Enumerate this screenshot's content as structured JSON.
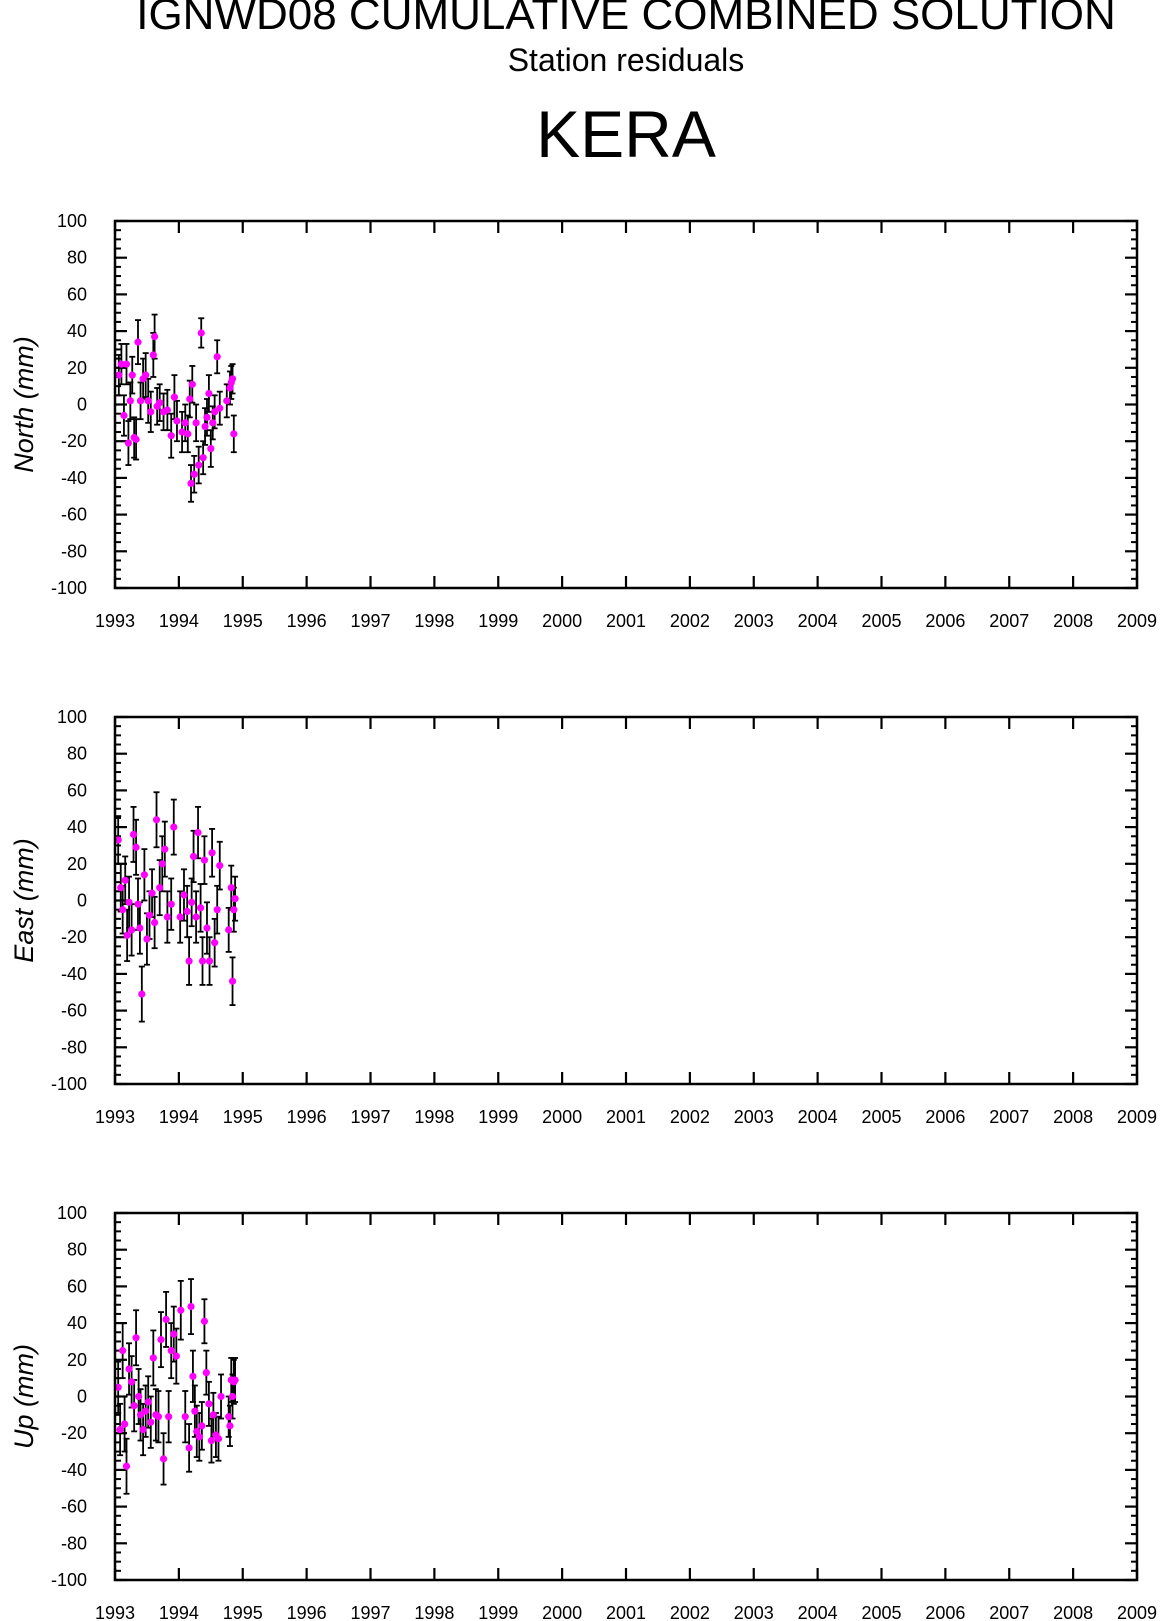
{
  "header": {
    "title": "IGNWD08 CUMULATIVE COMBINED SOLUTION",
    "subtitle": "Station residuals",
    "station": "KERA"
  },
  "colors": {
    "marker": "#ff00ff",
    "errorbar": "#000000",
    "axis": "#000000"
  },
  "chart_data": [
    {
      "type": "scatter",
      "ylabel": "North (mm)",
      "xlim": [
        1993,
        2009
      ],
      "ylim": [
        -100,
        100
      ],
      "x_ticks": [
        "1993",
        "1994",
        "1995",
        "1996",
        "1997",
        "1998",
        "1999",
        "2000",
        "2001",
        "2002",
        "2003",
        "2004",
        "2005",
        "2006",
        "2007",
        "2008",
        "2009"
      ],
      "y_ticks": [
        "100",
        "80",
        "60",
        "40",
        "20",
        "0",
        "-20",
        "-40",
        "-60",
        "-80",
        "-100"
      ],
      "grid": false,
      "series": [
        {
          "points": [
            {
              "x": 1993.06,
              "y": 16,
              "err": 11
            },
            {
              "x": 1993.1,
              "y": 22,
              "err": 11
            },
            {
              "x": 1993.14,
              "y": -6,
              "err": 11
            },
            {
              "x": 1993.18,
              "y": 22,
              "err": 11
            },
            {
              "x": 1993.21,
              "y": -21,
              "err": 12
            },
            {
              "x": 1993.24,
              "y": 2,
              "err": 10
            },
            {
              "x": 1993.27,
              "y": 16,
              "err": 10
            },
            {
              "x": 1993.3,
              "y": -18,
              "err": 11
            },
            {
              "x": 1993.33,
              "y": -19,
              "err": 11
            },
            {
              "x": 1993.36,
              "y": 34,
              "err": 12
            },
            {
              "x": 1993.4,
              "y": 2,
              "err": 10
            },
            {
              "x": 1993.44,
              "y": 14,
              "err": 11
            },
            {
              "x": 1993.48,
              "y": 16,
              "err": 12
            },
            {
              "x": 1993.52,
              "y": 2,
              "err": 12
            },
            {
              "x": 1993.56,
              "y": -4,
              "err": 11
            },
            {
              "x": 1993.6,
              "y": 27,
              "err": 12
            },
            {
              "x": 1993.62,
              "y": 37,
              "err": 12
            },
            {
              "x": 1993.66,
              "y": -1,
              "err": 10
            },
            {
              "x": 1993.7,
              "y": 1,
              "err": 10
            },
            {
              "x": 1993.76,
              "y": -4,
              "err": 10
            },
            {
              "x": 1993.82,
              "y": -3,
              "err": 11
            },
            {
              "x": 1993.88,
              "y": -17,
              "err": 12
            },
            {
              "x": 1993.93,
              "y": 4,
              "err": 12
            },
            {
              "x": 1993.97,
              "y": -9,
              "err": 11
            },
            {
              "x": 1994.05,
              "y": -15,
              "err": 11
            },
            {
              "x": 1994.1,
              "y": -10,
              "err": 10
            },
            {
              "x": 1994.14,
              "y": -16,
              "err": 10
            },
            {
              "x": 1994.17,
              "y": 3,
              "err": 10
            },
            {
              "x": 1994.19,
              "y": -43,
              "err": 10
            },
            {
              "x": 1994.21,
              "y": 11,
              "err": 10
            },
            {
              "x": 1994.24,
              "y": -38,
              "err": 10
            },
            {
              "x": 1994.27,
              "y": -10,
              "err": 10
            },
            {
              "x": 1994.31,
              "y": -33,
              "err": 10
            },
            {
              "x": 1994.35,
              "y": 39,
              "err": 8
            },
            {
              "x": 1994.38,
              "y": -29,
              "err": 9
            },
            {
              "x": 1994.41,
              "y": -12,
              "err": 10
            },
            {
              "x": 1994.44,
              "y": -7,
              "err": 10
            },
            {
              "x": 1994.47,
              "y": 6,
              "err": 10
            },
            {
              "x": 1994.5,
              "y": -24,
              "err": 10
            },
            {
              "x": 1994.53,
              "y": -10,
              "err": 9
            },
            {
              "x": 1994.56,
              "y": -4,
              "err": 9
            },
            {
              "x": 1994.6,
              "y": 26,
              "err": 9
            },
            {
              "x": 1994.64,
              "y": -2,
              "err": 9
            },
            {
              "x": 1994.75,
              "y": 2,
              "err": 9
            },
            {
              "x": 1994.8,
              "y": 9,
              "err": 9
            },
            {
              "x": 1994.82,
              "y": 12,
              "err": 9
            },
            {
              "x": 1994.84,
              "y": 14,
              "err": 8
            },
            {
              "x": 1994.86,
              "y": -16,
              "err": 10
            }
          ]
        }
      ]
    },
    {
      "type": "scatter",
      "ylabel": "East (mm)",
      "xlim": [
        1993,
        2009
      ],
      "ylim": [
        -100,
        100
      ],
      "x_ticks": [
        "1993",
        "1994",
        "1995",
        "1996",
        "1997",
        "1998",
        "1999",
        "2000",
        "2001",
        "2002",
        "2003",
        "2004",
        "2005",
        "2006",
        "2007",
        "2008",
        "2009"
      ],
      "y_ticks": [
        "100",
        "80",
        "60",
        "40",
        "20",
        "0",
        "-20",
        "-40",
        "-60",
        "-80",
        "-100"
      ],
      "grid": false,
      "series": [
        {
          "points": [
            {
              "x": 1993.05,
              "y": 33,
              "err": 13
            },
            {
              "x": 1993.09,
              "y": 7,
              "err": 13
            },
            {
              "x": 1993.12,
              "y": -5,
              "err": 13
            },
            {
              "x": 1993.16,
              "y": 11,
              "err": 13
            },
            {
              "x": 1993.19,
              "y": -19,
              "err": 14
            },
            {
              "x": 1993.22,
              "y": -1,
              "err": 14
            },
            {
              "x": 1993.26,
              "y": -16,
              "err": 14
            },
            {
              "x": 1993.29,
              "y": 36,
              "err": 15
            },
            {
              "x": 1993.33,
              "y": 29,
              "err": 15
            },
            {
              "x": 1993.36,
              "y": -2,
              "err": 14
            },
            {
              "x": 1993.39,
              "y": -15,
              "err": 14
            },
            {
              "x": 1993.42,
              "y": -51,
              "err": 15
            },
            {
              "x": 1993.46,
              "y": 14,
              "err": 14
            },
            {
              "x": 1993.5,
              "y": -21,
              "err": 14
            },
            {
              "x": 1993.54,
              "y": -8,
              "err": 13
            },
            {
              "x": 1993.58,
              "y": 4,
              "err": 13
            },
            {
              "x": 1993.62,
              "y": -12,
              "err": 14
            },
            {
              "x": 1993.65,
              "y": 44,
              "err": 15
            },
            {
              "x": 1993.7,
              "y": 7,
              "err": 15
            },
            {
              "x": 1993.74,
              "y": 20,
              "err": 15
            },
            {
              "x": 1993.78,
              "y": 28,
              "err": 15
            },
            {
              "x": 1993.82,
              "y": -9,
              "err": 14
            },
            {
              "x": 1993.88,
              "y": -2,
              "err": 14
            },
            {
              "x": 1993.92,
              "y": 40,
              "err": 15
            },
            {
              "x": 1994.02,
              "y": -9,
              "err": 14
            },
            {
              "x": 1994.08,
              "y": 3,
              "err": 14
            },
            {
              "x": 1994.13,
              "y": -6,
              "err": 14
            },
            {
              "x": 1994.16,
              "y": -33,
              "err": 13
            },
            {
              "x": 1994.2,
              "y": -1,
              "err": 13
            },
            {
              "x": 1994.23,
              "y": 24,
              "err": 14
            },
            {
              "x": 1994.27,
              "y": -9,
              "err": 14
            },
            {
              "x": 1994.3,
              "y": 37,
              "err": 14
            },
            {
              "x": 1994.34,
              "y": -4,
              "err": 13
            },
            {
              "x": 1994.37,
              "y": -33,
              "err": 13
            },
            {
              "x": 1994.4,
              "y": 22,
              "err": 13
            },
            {
              "x": 1994.44,
              "y": -15,
              "err": 14
            },
            {
              "x": 1994.48,
              "y": -33,
              "err": 13
            },
            {
              "x": 1994.52,
              "y": 26,
              "err": 13
            },
            {
              "x": 1994.56,
              "y": -23,
              "err": 13
            },
            {
              "x": 1994.6,
              "y": -5,
              "err": 13
            },
            {
              "x": 1994.64,
              "y": 19,
              "err": 13
            },
            {
              "x": 1994.78,
              "y": -16,
              "err": 12
            },
            {
              "x": 1994.82,
              "y": 7,
              "err": 12
            },
            {
              "x": 1994.84,
              "y": -44,
              "err": 13
            },
            {
              "x": 1994.86,
              "y": -5,
              "err": 12
            },
            {
              "x": 1994.88,
              "y": 1,
              "err": 12
            }
          ]
        }
      ]
    },
    {
      "type": "scatter",
      "ylabel": "Up (mm)",
      "xlim": [
        1993,
        2009
      ],
      "ylim": [
        -100,
        100
      ],
      "x_ticks": [
        "1993",
        "1994",
        "1995",
        "1996",
        "1997",
        "1998",
        "1999",
        "2000",
        "2001",
        "2002",
        "2003",
        "2004",
        "2005",
        "2006",
        "2007",
        "2008",
        "2009"
      ],
      "y_ticks": [
        "100",
        "80",
        "60",
        "40",
        "20",
        "0",
        "-20",
        "-40",
        "-60",
        "-80",
        "-100"
      ],
      "grid": false,
      "series": [
        {
          "points": [
            {
              "x": 1993.05,
              "y": 5,
              "err": 14
            },
            {
              "x": 1993.08,
              "y": -18,
              "err": 14
            },
            {
              "x": 1993.12,
              "y": 25,
              "err": 15
            },
            {
              "x": 1993.15,
              "y": -15,
              "err": 15
            },
            {
              "x": 1993.18,
              "y": -38,
              "err": 15
            },
            {
              "x": 1993.22,
              "y": 15,
              "err": 14
            },
            {
              "x": 1993.26,
              "y": 8,
              "err": 14
            },
            {
              "x": 1993.3,
              "y": -5,
              "err": 14
            },
            {
              "x": 1993.33,
              "y": 32,
              "err": 15
            },
            {
              "x": 1993.37,
              "y": 0,
              "err": 15
            },
            {
              "x": 1993.4,
              "y": -10,
              "err": 14
            },
            {
              "x": 1993.44,
              "y": -18,
              "err": 14
            },
            {
              "x": 1993.48,
              "y": -8,
              "err": 14
            },
            {
              "x": 1993.52,
              "y": -3,
              "err": 14
            },
            {
              "x": 1993.56,
              "y": -14,
              "err": 14
            },
            {
              "x": 1993.6,
              "y": 21,
              "err": 15
            },
            {
              "x": 1993.64,
              "y": -10,
              "err": 14
            },
            {
              "x": 1993.68,
              "y": -11,
              "err": 14
            },
            {
              "x": 1993.72,
              "y": 31,
              "err": 15
            },
            {
              "x": 1993.76,
              "y": -34,
              "err": 14
            },
            {
              "x": 1993.8,
              "y": 42,
              "err": 15
            },
            {
              "x": 1993.84,
              "y": -11,
              "err": 14
            },
            {
              "x": 1993.88,
              "y": 25,
              "err": 15
            },
            {
              "x": 1993.92,
              "y": 34,
              "err": 15
            },
            {
              "x": 1993.96,
              "y": 22,
              "err": 15
            },
            {
              "x": 1994.03,
              "y": 47,
              "err": 16
            },
            {
              "x": 1994.1,
              "y": -11,
              "err": 14
            },
            {
              "x": 1994.16,
              "y": -28,
              "err": 13
            },
            {
              "x": 1994.19,
              "y": 49,
              "err": 15
            },
            {
              "x": 1994.22,
              "y": 11,
              "err": 14
            },
            {
              "x": 1994.25,
              "y": -8,
              "err": 14
            },
            {
              "x": 1994.28,
              "y": -19,
              "err": 14
            },
            {
              "x": 1994.32,
              "y": -22,
              "err": 13
            },
            {
              "x": 1994.36,
              "y": -16,
              "err": 13
            },
            {
              "x": 1994.4,
              "y": 41,
              "err": 12
            },
            {
              "x": 1994.43,
              "y": 13,
              "err": 12
            },
            {
              "x": 1994.47,
              "y": -4,
              "err": 12
            },
            {
              "x": 1994.51,
              "y": -24,
              "err": 12
            },
            {
              "x": 1994.54,
              "y": -10,
              "err": 12
            },
            {
              "x": 1994.58,
              "y": -21,
              "err": 12
            },
            {
              "x": 1994.62,
              "y": -23,
              "err": 12
            },
            {
              "x": 1994.66,
              "y": 0,
              "err": 12
            },
            {
              "x": 1994.78,
              "y": -11,
              "err": 11
            },
            {
              "x": 1994.8,
              "y": -16,
              "err": 11
            },
            {
              "x": 1994.82,
              "y": 9,
              "err": 12
            },
            {
              "x": 1994.84,
              "y": 0,
              "err": 12
            },
            {
              "x": 1994.86,
              "y": 8,
              "err": 12
            },
            {
              "x": 1994.88,
              "y": 9,
              "err": 12
            }
          ]
        }
      ]
    }
  ]
}
